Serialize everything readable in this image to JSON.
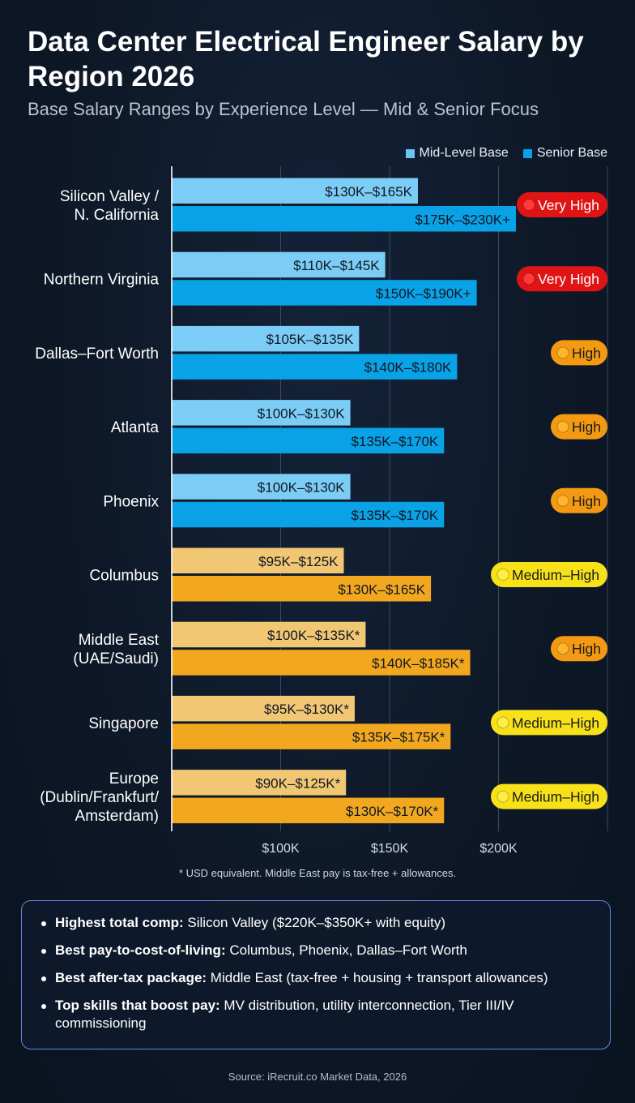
{
  "title": "Data Center Electrical Engineer Salary by Region 2026",
  "subtitle": "Base Salary Ranges by Experience Level — Mid & Senior Focus",
  "legend": [
    {
      "label": "Mid-Level Base",
      "color": "#6cc4f2"
    },
    {
      "label": "Senior Base",
      "color": "#0aa2e6"
    }
  ],
  "footnote": "* USD equivalent. Middle East pay is tax-free + allowances.",
  "insights": [
    {
      "bold": "Highest total comp:",
      "text": " Silicon Valley ($220K–$350K+ with equity)"
    },
    {
      "bold": "Best pay-to-cost-of-living:",
      "text": " Columbus, Phoenix, Dallas–Fort Worth"
    },
    {
      "bold": "Best after-tax package:",
      "text": " Middle East (tax-free + housing + transport allowances)"
    },
    {
      "bold": "Top skills that boost pay:",
      "text": " MV distribution, utility interconnection, Tier III/IV commissioning"
    }
  ],
  "source": "Source: iRecruit.co Market Data, 2026",
  "colors": {
    "mid_blue": "#7ccdf5",
    "senior_blue": "#0aa2e6",
    "mid_orange": "#f2c774",
    "senior_orange": "#f2a81e",
    "demand_very_high": "#e01414",
    "demand_high": "#f39a12",
    "demand_medium_high": "#f7e21a"
  },
  "chart_data": {
    "type": "bar",
    "orientation": "horizontal",
    "xlim": [
      50,
      250
    ],
    "x_ticks": [
      {
        "value": 100,
        "label": "$100K"
      },
      {
        "value": 150,
        "label": "$150K"
      },
      {
        "value": 200,
        "label": "$200K"
      }
    ],
    "grid": true,
    "legend_position": "top-right",
    "categories": [
      "Silicon Valley /\nN. California",
      "Northern Virginia",
      "Dallas–Fort Worth",
      "Atlanta",
      "Phoenix",
      "Columbus",
      "Middle East\n(UAE/Saudi)",
      "Singapore",
      "Europe\n(Dublin/Frankfurt/\nAmsterdam)"
    ],
    "palette": [
      "blue",
      "blue",
      "blue",
      "blue",
      "blue",
      "orange",
      "orange",
      "orange",
      "orange"
    ],
    "series": [
      {
        "name": "Mid-Level Base",
        "values": [
          163,
          148,
          136,
          132,
          132,
          129,
          139,
          134,
          130
        ],
        "labels": [
          "$130K–$165K",
          "$110K–$145K",
          "$105K–$135K",
          "$100K–$130K",
          "$100K–$130K",
          "$95K–$125K",
          "$100K–$135K*",
          "$95K–$130K*",
          "$90K–$125K*"
        ]
      },
      {
        "name": "Senior Base",
        "values": [
          208,
          190,
          181,
          175,
          175,
          169,
          187,
          178,
          175
        ],
        "labels": [
          "$175K–$230K+",
          "$150K–$190K+",
          "$140K–$180K",
          "$135K–$170K",
          "$135K–$170K",
          "$130K–$165K",
          "$140K–$185K*",
          "$135K–$175K*",
          "$130K–$170K*"
        ]
      }
    ],
    "demand": [
      {
        "label": "Very High",
        "level": "very_high"
      },
      {
        "label": "Very High",
        "level": "very_high"
      },
      {
        "label": "High",
        "level": "high"
      },
      {
        "label": "High",
        "level": "high"
      },
      {
        "label": "High",
        "level": "high"
      },
      {
        "label": "Medium–High",
        "level": "medium_high"
      },
      {
        "label": "High",
        "level": "high"
      },
      {
        "label": "Medium–High",
        "level": "medium_high"
      },
      {
        "label": "Medium–High",
        "level": "medium_high"
      }
    ]
  }
}
